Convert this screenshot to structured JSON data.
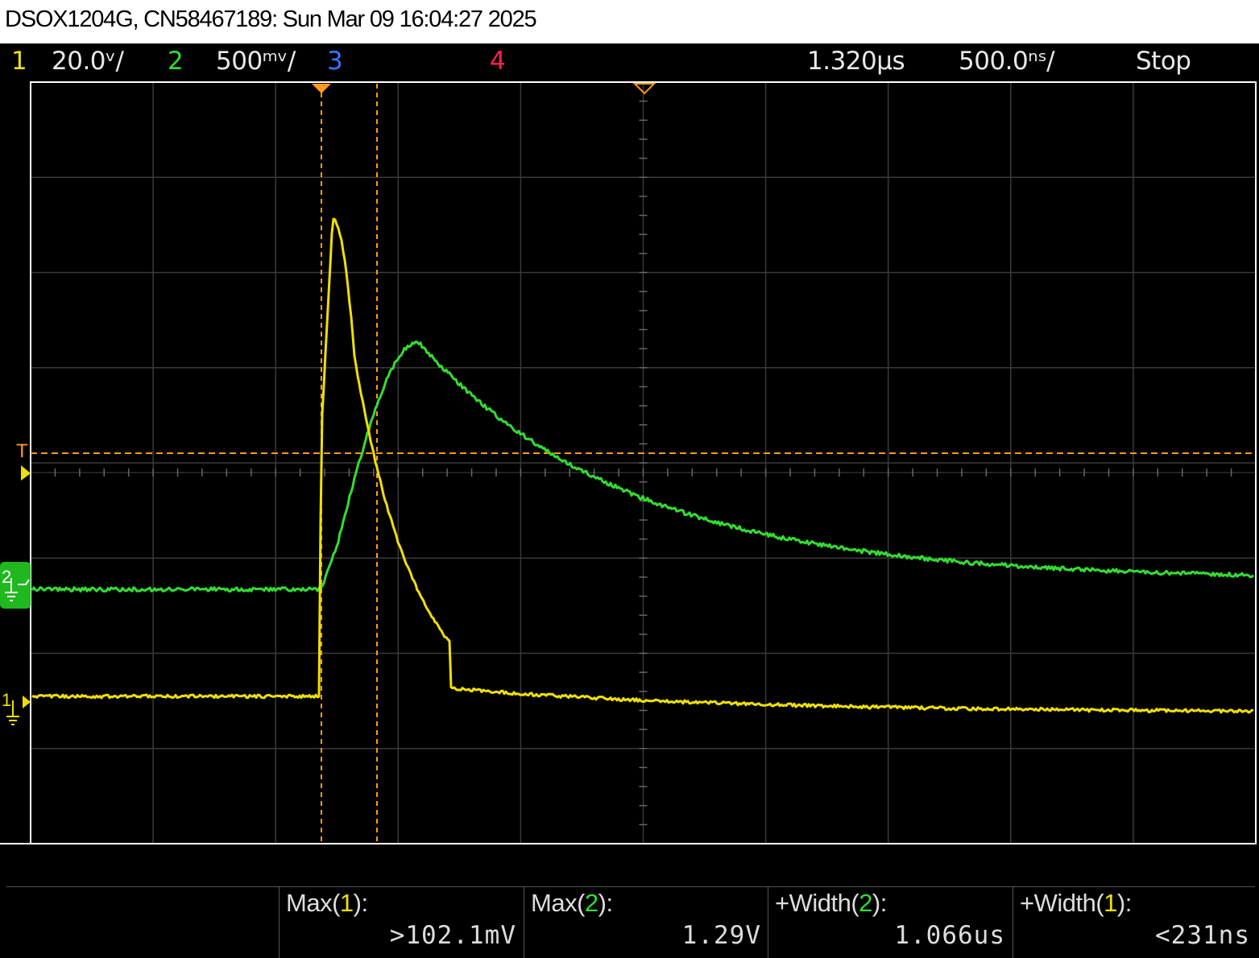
{
  "title": "DSOX1204G, CN58467189: Sun Mar 09 16:04:27 2025",
  "channels": [
    {
      "num": "1",
      "scale": "20.0ᵛ/",
      "color": "#f0e000"
    },
    {
      "num": "2",
      "scale": "500ᵐᵛ/",
      "color": "#33dd33"
    },
    {
      "num": "3",
      "scale": "",
      "color": "#3377ff"
    },
    {
      "num": "4",
      "scale": "",
      "color": "#ff2244"
    }
  ],
  "timebase": {
    "delay": "1.320µs",
    "scale": "500.0ⁿˢ/",
    "run_state": "Stop"
  },
  "markers": {
    "trigger": "T",
    "ch1_ground": "1",
    "ch2_ground": "2"
  },
  "measurements": [
    {
      "name": "Max(",
      "ch": "1",
      "tail": "):",
      "value": ">102.1mV",
      "color": "#f0e000"
    },
    {
      "name": "Max(",
      "ch": "2",
      "tail": "):",
      "value": "1.29V",
      "color": "#33dd33"
    },
    {
      "name": "+Width(",
      "ch": "2",
      "tail": "):",
      "value": "1.066us",
      "color": "#33dd33"
    },
    {
      "name": "+Width(",
      "ch": "1",
      "tail": "):",
      "value": "<231ns",
      "color": "#f0e000"
    }
  ],
  "colors": {
    "ch1": "#f0e000",
    "ch2": "#33dd33",
    "trigger": "#ff9a1a",
    "grid": "#3a3a3a"
  }
}
